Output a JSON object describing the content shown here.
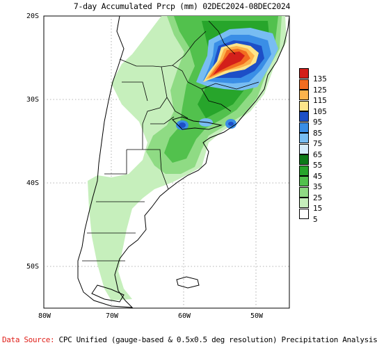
{
  "title": "7-day Accumulated Prcp (mm) 02DEC2024-08DEC2024",
  "y_ticks": [
    "20S",
    "30S",
    "40S",
    "50S"
  ],
  "x_ticks": [
    "80W",
    "70W",
    "60W",
    "50W"
  ],
  "legend": {
    "labels": [
      "135",
      "125",
      "115",
      "105",
      "95",
      "85",
      "75",
      "65",
      "55",
      "45",
      "35",
      "25",
      "15",
      "5"
    ],
    "colors": [
      "#d31f1a",
      "#f26c20",
      "#fcb34c",
      "#fce58a",
      "#1d4fc7",
      "#3a8ee6",
      "#78bdf2",
      "#d5ecfb",
      "#0c7a19",
      "#27a52b",
      "#52c14d",
      "#8fdb84",
      "#c6efbc",
      "#ffffff"
    ]
  },
  "footer": {
    "label": "Data Source:",
    "text": " CPC Unified (gauge-based & 0.5x0.5 deg resolution) Precipitation Analysis"
  }
}
